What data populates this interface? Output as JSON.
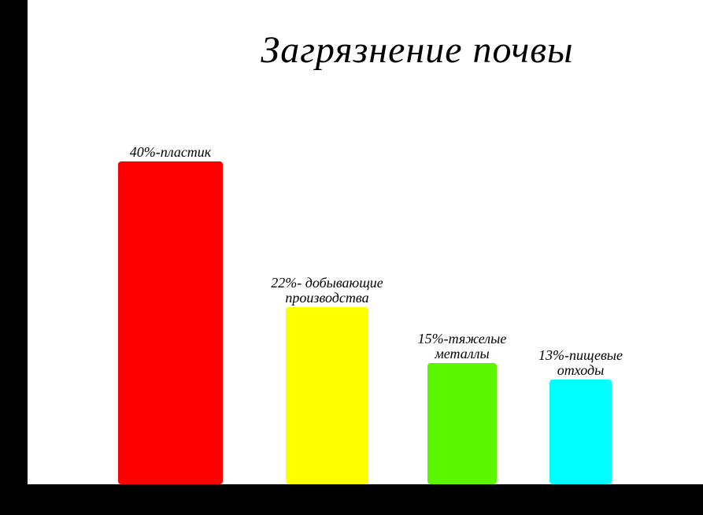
{
  "chart_data": {
    "type": "bar",
    "title": "Загрязнение почвы",
    "values": [
      40,
      22,
      15,
      13
    ],
    "value_labels": [
      "40%-пластик",
      "22%- добывающие производства",
      "15%-тяжелые металлы",
      "13%-пищевые отходы"
    ],
    "colors": [
      "#ff0000",
      "#ffff00",
      "#5cf500",
      "#00ffff"
    ]
  }
}
